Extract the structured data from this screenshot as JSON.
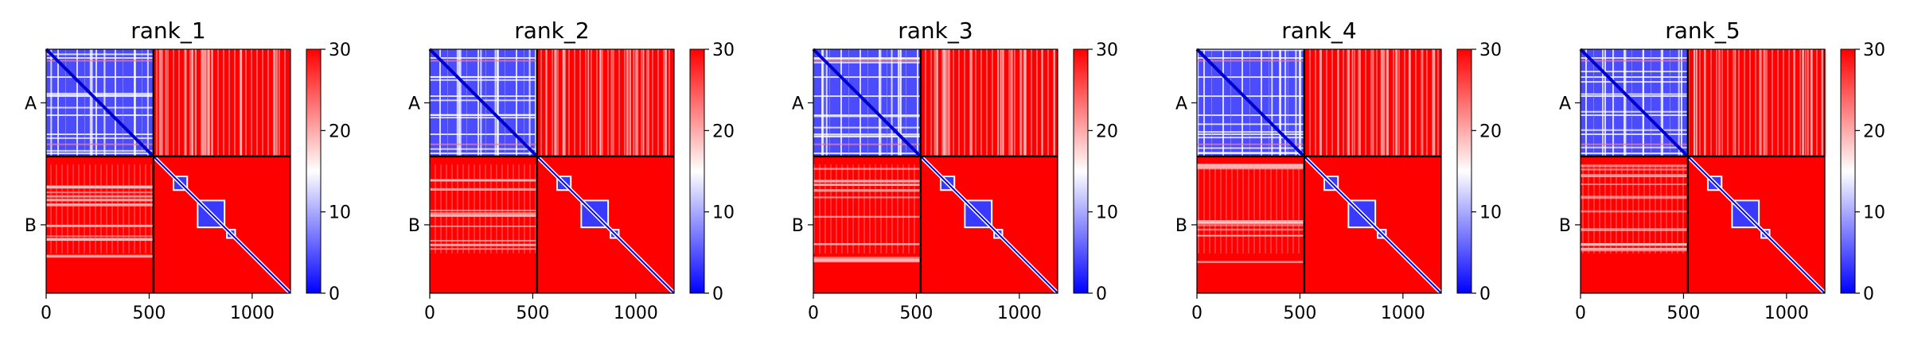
{
  "figure": {
    "background": "#ffffff"
  },
  "colormap": {
    "name": "bwr",
    "low": "#0000ff",
    "mid": "#ffffff",
    "high": "#ff0000",
    "vmin": 0,
    "vmax": 30
  },
  "chart_data": [
    {
      "type": "heatmap",
      "title": "rank_1",
      "x_ticks": [
        0,
        500,
        1000
      ],
      "y_tick_labels": [
        "A",
        "B"
      ],
      "chain_lengths": [
        521,
        665
      ],
      "colorbar": {
        "ticks": [
          0,
          10,
          20,
          30
        ],
        "range": [
          0,
          30
        ]
      },
      "cmap": "bwr",
      "matrix_description": "predicted aligned error; low (blue) within chain A, high (red) between chains; chain B blue along diagonal blocks"
    },
    {
      "type": "heatmap",
      "title": "rank_2",
      "x_ticks": [
        0,
        500,
        1000
      ],
      "y_tick_labels": [
        "A",
        "B"
      ],
      "chain_lengths": [
        521,
        665
      ],
      "colorbar": {
        "ticks": [
          0,
          10,
          20,
          30
        ],
        "range": [
          0,
          30
        ]
      },
      "cmap": "bwr"
    },
    {
      "type": "heatmap",
      "title": "rank_3",
      "x_ticks": [
        0,
        500,
        1000
      ],
      "y_tick_labels": [
        "A",
        "B"
      ],
      "chain_lengths": [
        521,
        665
      ],
      "colorbar": {
        "ticks": [
          0,
          10,
          20,
          30
        ],
        "range": [
          0,
          30
        ]
      },
      "cmap": "bwr"
    },
    {
      "type": "heatmap",
      "title": "rank_4",
      "x_ticks": [
        0,
        500,
        1000
      ],
      "y_tick_labels": [
        "A",
        "B"
      ],
      "chain_lengths": [
        521,
        665
      ],
      "colorbar": {
        "ticks": [
          0,
          10,
          20,
          30
        ],
        "range": [
          0,
          30
        ]
      },
      "cmap": "bwr"
    },
    {
      "type": "heatmap",
      "title": "rank_5",
      "x_ticks": [
        0,
        500,
        1000
      ],
      "y_tick_labels": [
        "A",
        "B"
      ],
      "chain_lengths": [
        521,
        665
      ],
      "colorbar": {
        "ticks": [
          0,
          10,
          20,
          30
        ],
        "range": [
          0,
          30
        ]
      },
      "cmap": "bwr"
    }
  ]
}
